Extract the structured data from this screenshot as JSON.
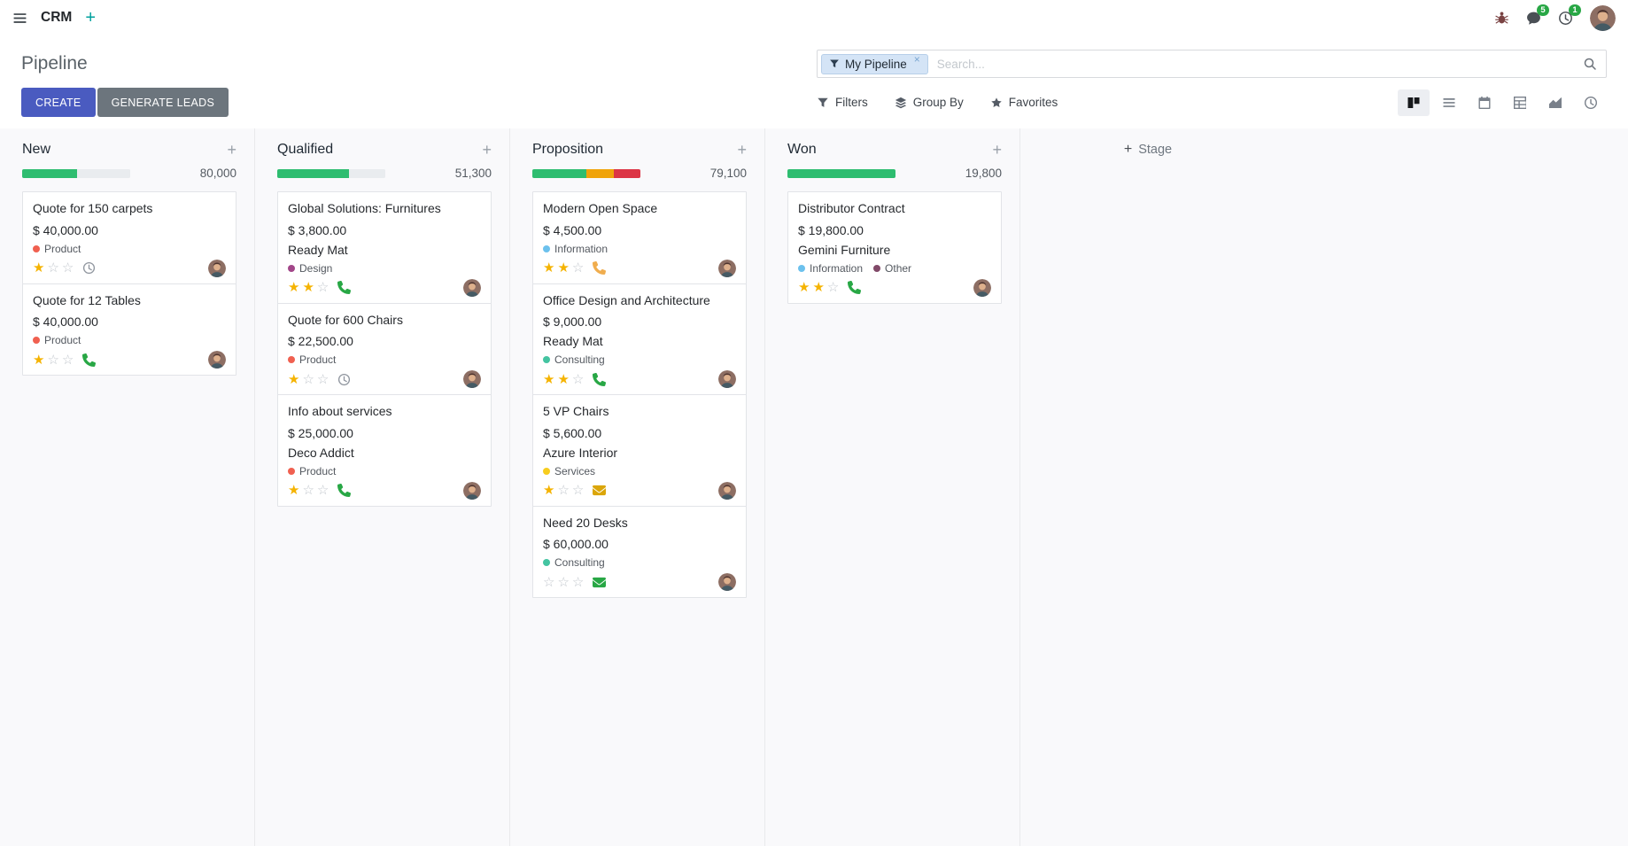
{
  "topbar": {
    "app_name": "CRM",
    "messages_badge": "5",
    "activities_badge": "1"
  },
  "control_panel": {
    "title": "Pipeline",
    "search": {
      "facet_label": "My Pipeline",
      "placeholder": "Search..."
    },
    "buttons": {
      "create": "CREATE",
      "generate_leads": "GENERATE LEADS",
      "filters": "Filters",
      "group_by": "Group By",
      "favorites": "Favorites"
    }
  },
  "view_switcher": [
    {
      "view": "kanban",
      "active": true
    },
    {
      "view": "list",
      "active": false
    },
    {
      "view": "calendar",
      "active": false
    },
    {
      "view": "pivot",
      "active": false
    },
    {
      "view": "graph",
      "active": false
    },
    {
      "view": "activity",
      "active": false
    }
  ],
  "icons": {
    "apps-menu": "hamburger",
    "add-menu": "+",
    "debug": "bug",
    "messages": "chat-bubble",
    "activities": "clock",
    "search": "magnifier",
    "filters": "funnel",
    "group-by": "layers",
    "favorites": "star"
  },
  "colors": {
    "primary_button": "#4a5bc0",
    "secondary_button": "#6c757d",
    "badge_green": "#28a745",
    "progress_green": "#2ebd70",
    "progress_orange": "#f0a30a",
    "progress_red": "#dc3545",
    "star_gold": "#f5b300"
  },
  "board": {
    "add_stage_label": "Stage",
    "columns": [
      {
        "name": "New",
        "total": "80,000",
        "progress": [
          {
            "pct": 51,
            "color": "#2ebd70"
          },
          {
            "pct": 49,
            "color": "#e9ecef"
          }
        ],
        "cards": [
          {
            "title": "Quote for 150 carpets",
            "amount": "$ 40,000.00",
            "partner": "",
            "tags": [
              {
                "label": "Product",
                "color": "#f06050"
              }
            ],
            "stars": 1,
            "activity": {
              "icon": "clock",
              "color": "#8f959e"
            }
          },
          {
            "title": "Quote for 12 Tables",
            "amount": "$ 40,000.00",
            "partner": "",
            "tags": [
              {
                "label": "Product",
                "color": "#f06050"
              }
            ],
            "stars": 1,
            "activity": {
              "icon": "phone",
              "color": "#28a745"
            }
          }
        ]
      },
      {
        "name": "Qualified",
        "total": "51,300",
        "progress": [
          {
            "pct": 66,
            "color": "#2ebd70"
          },
          {
            "pct": 34,
            "color": "#e9ecef"
          }
        ],
        "cards": [
          {
            "title": "Global Solutions: Furnitures",
            "amount": "$ 3,800.00",
            "partner": "Ready Mat",
            "tags": [
              {
                "label": "Design",
                "color": "#a24689"
              }
            ],
            "stars": 2,
            "activity": {
              "icon": "phone",
              "color": "#28a745"
            }
          },
          {
            "title": "Quote for 600 Chairs",
            "amount": "$ 22,500.00",
            "partner": "",
            "tags": [
              {
                "label": "Product",
                "color": "#f06050"
              }
            ],
            "stars": 1,
            "activity": {
              "icon": "clock",
              "color": "#8f959e"
            }
          },
          {
            "title": "Info about services",
            "amount": "$ 25,000.00",
            "partner": "Deco Addict",
            "tags": [
              {
                "label": "Product",
                "color": "#f06050"
              }
            ],
            "stars": 1,
            "activity": {
              "icon": "phone",
              "color": "#28a745"
            }
          }
        ]
      },
      {
        "name": "Proposition",
        "total": "79,100",
        "progress": [
          {
            "pct": 50,
            "color": "#2ebd70"
          },
          {
            "pct": 25,
            "color": "#f0a30a"
          },
          {
            "pct": 25,
            "color": "#dc3545"
          }
        ],
        "cards": [
          {
            "title": "Modern Open Space",
            "amount": "$ 4,500.00",
            "partner": "",
            "tags": [
              {
                "label": "Information",
                "color": "#6cc1ed"
              }
            ],
            "stars": 2,
            "activity": {
              "icon": "phone",
              "color": "#f0ad4e"
            }
          },
          {
            "title": "Office Design and Architecture",
            "amount": "$ 9,000.00",
            "partner": "Ready Mat",
            "tags": [
              {
                "label": "Consulting",
                "color": "#44c4a1"
              }
            ],
            "stars": 2,
            "activity": {
              "icon": "phone",
              "color": "#28a745"
            }
          },
          {
            "title": "5 VP Chairs",
            "amount": "$ 5,600.00",
            "partner": "Azure Interior",
            "tags": [
              {
                "label": "Services",
                "color": "#f7cd1f"
              }
            ],
            "stars": 1,
            "activity": {
              "icon": "envelope",
              "color": "#dba60a"
            }
          },
          {
            "title": "Need 20 Desks",
            "amount": "$ 60,000.00",
            "partner": "",
            "tags": [
              {
                "label": "Consulting",
                "color": "#44c4a1"
              }
            ],
            "stars": 0,
            "activity": {
              "icon": "envelope",
              "color": "#28a745"
            }
          }
        ]
      },
      {
        "name": "Won",
        "total": "19,800",
        "progress": [
          {
            "pct": 100,
            "color": "#2ebd70"
          }
        ],
        "cards": [
          {
            "title": "Distributor Contract",
            "amount": "$ 19,800.00",
            "partner": "Gemini Furniture",
            "tags": [
              {
                "label": "Information",
                "color": "#6cc1ed"
              },
              {
                "label": "Other",
                "color": "#814968"
              }
            ],
            "stars": 2,
            "activity": {
              "icon": "phone",
              "color": "#28a745"
            }
          }
        ]
      }
    ]
  }
}
